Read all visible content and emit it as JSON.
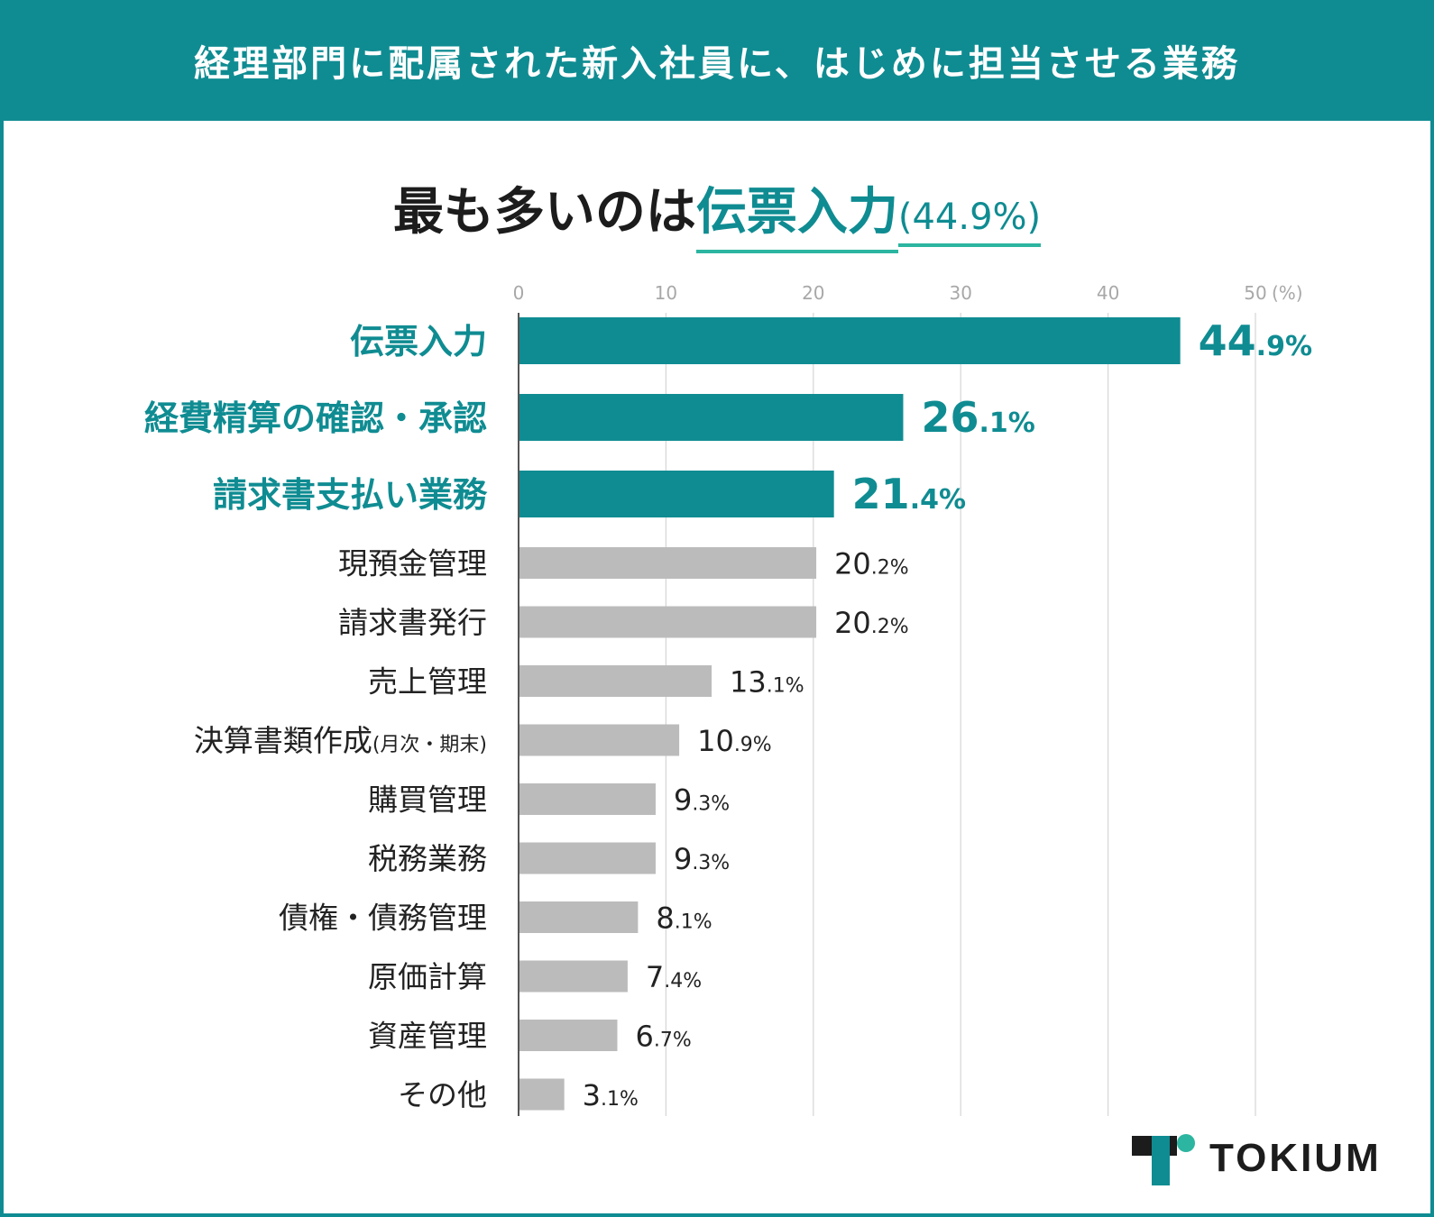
{
  "banner": {
    "title": "経理部門に配属された新入社員に、はじめに担当させる業務"
  },
  "headline": {
    "prefix": "最も多いのは",
    "highlight": "伝票入力",
    "value": "(44.9%)"
  },
  "chart_data": {
    "type": "bar",
    "orientation": "horizontal",
    "title": "経理部門に配属された新入社員に、はじめに担当させる業務",
    "unit_label": "(%)",
    "xlim": [
      0,
      50
    ],
    "ticks": [
      0,
      10,
      20,
      30,
      40,
      50
    ],
    "grid": true,
    "highlight_count": 3,
    "categories": [
      {
        "label": "伝票入力",
        "note": "",
        "value": 44.9,
        "int": "44",
        "dec": ".9%"
      },
      {
        "label": "経費精算の確認・承認",
        "note": "",
        "value": 26.1,
        "int": "26",
        "dec": ".1%"
      },
      {
        "label": "請求書支払い業務",
        "note": "",
        "value": 21.4,
        "int": "21",
        "dec": ".4%"
      },
      {
        "label": "現預金管理",
        "note": "",
        "value": 20.2,
        "int": "20",
        "dec": ".2%"
      },
      {
        "label": "請求書発行",
        "note": "",
        "value": 20.2,
        "int": "20",
        "dec": ".2%"
      },
      {
        "label": "売上管理",
        "note": "",
        "value": 13.1,
        "int": "13",
        "dec": ".1%"
      },
      {
        "label": "決算書類作成",
        "note": "(月次・期末)",
        "value": 10.9,
        "int": "10",
        "dec": ".9%"
      },
      {
        "label": "購買管理",
        "note": "",
        "value": 9.3,
        "int": "9",
        "dec": ".3%"
      },
      {
        "label": "税務業務",
        "note": "",
        "value": 9.3,
        "int": "9",
        "dec": ".3%"
      },
      {
        "label": "債権・債務管理",
        "note": "",
        "value": 8.1,
        "int": "8",
        "dec": ".1%"
      },
      {
        "label": "原価計算",
        "note": "",
        "value": 7.4,
        "int": "7",
        "dec": ".4%"
      },
      {
        "label": "資産管理",
        "note": "",
        "value": 6.7,
        "int": "6",
        "dec": ".7%"
      },
      {
        "label": "その他",
        "note": "",
        "value": 3.1,
        "int": "3",
        "dec": ".1%"
      }
    ],
    "colors": {
      "highlight": "#0f8c92",
      "normal_bar": "#bcbbbb",
      "grid": "#d6d6d6",
      "axis": "#555555",
      "tick_text": "#a8a8a8",
      "label_text": "#222222"
    }
  },
  "logo": {
    "text": "TOKIUM"
  }
}
